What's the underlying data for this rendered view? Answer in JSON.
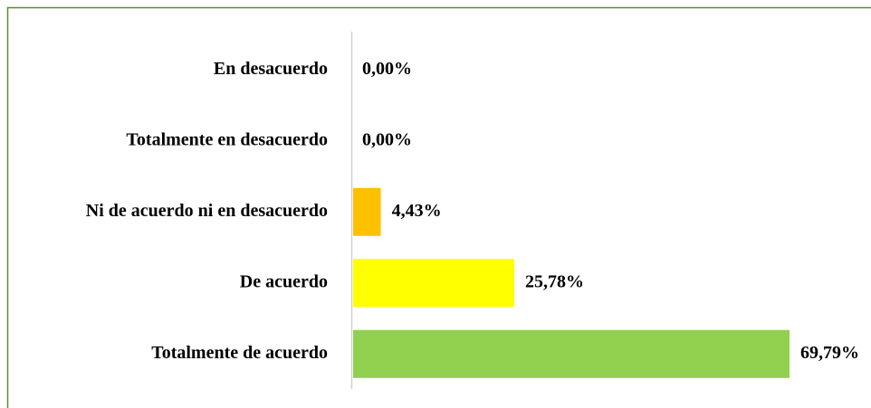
{
  "chart_data": {
    "type": "barh",
    "categories": [
      "En desacuerdo",
      "Totalmente en desacuerdo",
      "Ni de acuerdo ni en desacuerdo",
      "De acuerdo",
      "Totalmente de acuerdo"
    ],
    "values": [
      0,
      0,
      4.43,
      25.78,
      69.79
    ],
    "value_labels": [
      "0,00%",
      "0,00%",
      "4,43%",
      "25,78%",
      "69,79%"
    ],
    "colors": [
      null,
      null,
      "#ffc000",
      "#ffff00",
      "#92d050"
    ]
  }
}
